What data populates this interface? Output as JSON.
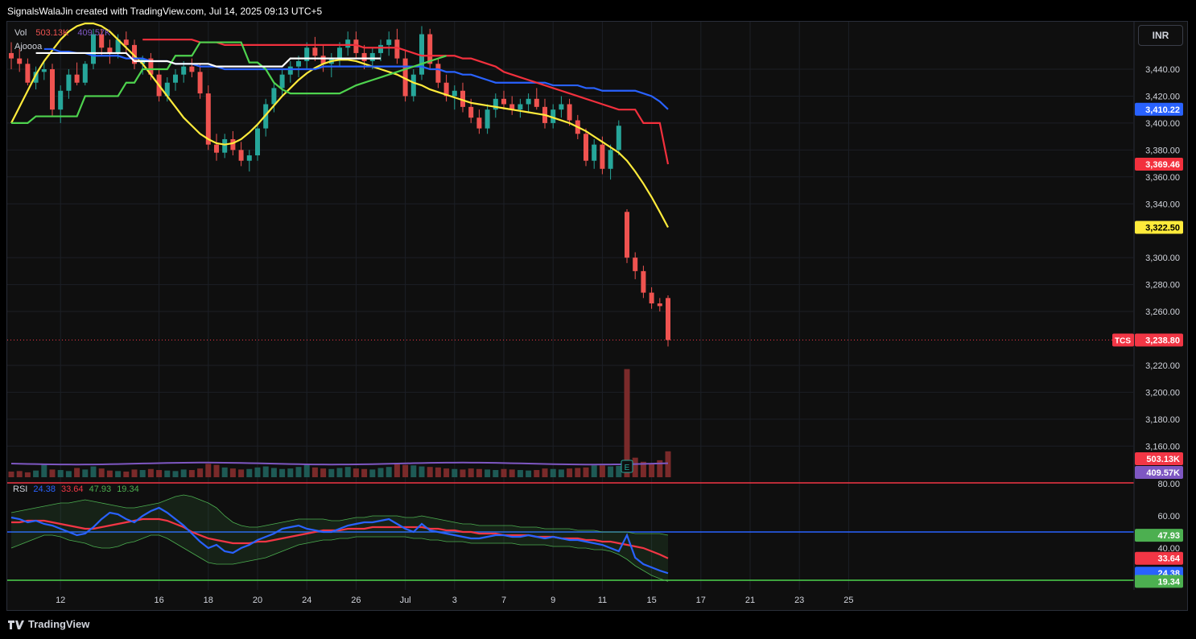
{
  "header": {
    "text": "SignalsWalaJin created with TradingView.com, Jul 14, 2025 09:13 UTC+5"
  },
  "currency_button": "INR",
  "footer": {
    "brand": "TradingView"
  },
  "legend": {
    "vol_label": "Vol",
    "vol_value1": "503.13K",
    "vol_value2": "409.57K",
    "indicator_label": "Ajoooa"
  },
  "colors": {
    "up": "#26a69a",
    "down": "#ef5350",
    "yellow": "#ffeb3b",
    "blue": "#2962ff",
    "red": "#f2303d",
    "green": "#4ed34e",
    "white": "#ffffff",
    "purple": "#7e57c2"
  },
  "price_axis": {
    "ticks": [
      3440,
      3420,
      3400,
      3380,
      3360,
      3340,
      3300,
      3280,
      3260,
      3220,
      3200,
      3180,
      3160
    ],
    "tick_labels": [
      "3,440.00",
      "3,420.00",
      "3,400.00",
      "3,380.00",
      "3,360.00",
      "3,340.00",
      "3,300.00",
      "3,280.00",
      "3,260.00",
      "3,220.00",
      "3,200.00",
      "3,180.00",
      "3,160.00"
    ]
  },
  "price_tags": [
    {
      "value": 3410.22,
      "label": "3,410.22",
      "color": "#2962ff",
      "text_color": "#ffffff"
    },
    {
      "value": 3369.46,
      "label": "3,369.46",
      "color": "#f2303d",
      "text_color": "#ffffff"
    },
    {
      "value": 3322.5,
      "label": "3,322.50",
      "color": "#ffeb3b",
      "text_color": "#000000"
    },
    {
      "value": 3238.8,
      "label": "3,238.80",
      "color": "#f23645",
      "text_color": "#ffffff",
      "symbol": "TCS"
    }
  ],
  "volume_tags": [
    {
      "label": "503.13K",
      "color": "#f23645"
    },
    {
      "label": "409.57K",
      "color": "#7e57c2"
    }
  ],
  "rsi": {
    "label": "RSI",
    "values": [
      "24.38",
      "33.64",
      "47.93",
      "19.34"
    ],
    "value_colors": [
      "#2962ff",
      "#f23645",
      "#4caf50",
      "#4caf50"
    ],
    "axis_labels": [
      "80.00",
      "60.00",
      "40.00"
    ],
    "axis_values": [
      80,
      60,
      40
    ],
    "tags": [
      {
        "value": 47.93,
        "label": "47.93",
        "color": "#4caf50"
      },
      {
        "value": 33.64,
        "label": "33.64",
        "color": "#f23645"
      },
      {
        "value": 24.38,
        "label": "24.38",
        "color": "#2962ff"
      },
      {
        "value": 19.34,
        "label": "19.34",
        "color": "#4caf50"
      }
    ],
    "levels": [
      80,
      50,
      19.34
    ]
  },
  "time_axis": {
    "labels": [
      "12",
      "16",
      "18",
      "20",
      "24",
      "26",
      "Jul",
      "3",
      "7",
      "9",
      "11",
      "15",
      "17",
      "21",
      "23",
      "25"
    ],
    "bar_index": [
      6,
      18,
      24,
      30,
      36,
      42,
      48,
      54,
      60,
      66,
      72,
      78,
      84,
      90,
      96,
      102
    ]
  },
  "earnings_marker": "E",
  "chart_data": {
    "type": "candlestick",
    "symbol": "TCS",
    "currency": "INR",
    "x_labels": [
      "12",
      "16",
      "18",
      "20",
      "24",
      "26",
      "Jul",
      "3",
      "7",
      "9",
      "11",
      "15",
      "17",
      "21",
      "23",
      "25"
    ],
    "ylim": [
      3150,
      3475
    ],
    "last_price": 3238.8,
    "ohlc": [
      [
        3452,
        3460,
        3440,
        3448
      ],
      [
        3448,
        3455,
        3438,
        3444
      ],
      [
        3444,
        3448,
        3428,
        3430
      ],
      [
        3430,
        3442,
        3425,
        3438
      ],
      [
        3438,
        3446,
        3432,
        3440
      ],
      [
        3440,
        3444,
        3405,
        3410
      ],
      [
        3410,
        3428,
        3400,
        3424
      ],
      [
        3424,
        3440,
        3418,
        3436
      ],
      [
        3436,
        3445,
        3428,
        3430
      ],
      [
        3430,
        3446,
        3428,
        3444
      ],
      [
        3444,
        3470,
        3440,
        3466
      ],
      [
        3466,
        3470,
        3450,
        3456
      ],
      [
        3456,
        3462,
        3444,
        3452
      ],
      [
        3452,
        3466,
        3448,
        3462
      ],
      [
        3462,
        3468,
        3452,
        3458
      ],
      [
        3458,
        3462,
        3440,
        3444
      ],
      [
        3444,
        3450,
        3436,
        3448
      ],
      [
        3448,
        3452,
        3432,
        3436
      ],
      [
        3436,
        3440,
        3416,
        3420
      ],
      [
        3420,
        3434,
        3416,
        3430
      ],
      [
        3430,
        3440,
        3424,
        3436
      ],
      [
        3436,
        3446,
        3430,
        3442
      ],
      [
        3442,
        3448,
        3434,
        3438
      ],
      [
        3438,
        3444,
        3418,
        3422
      ],
      [
        3422,
        3428,
        3380,
        3384
      ],
      [
        3384,
        3392,
        3372,
        3378
      ],
      [
        3378,
        3392,
        3374,
        3388
      ],
      [
        3388,
        3394,
        3376,
        3380
      ],
      [
        3380,
        3386,
        3368,
        3372
      ],
      [
        3372,
        3380,
        3364,
        3376
      ],
      [
        3376,
        3400,
        3372,
        3396
      ],
      [
        3396,
        3418,
        3390,
        3414
      ],
      [
        3414,
        3430,
        3408,
        3426
      ],
      [
        3426,
        3440,
        3420,
        3436
      ],
      [
        3436,
        3446,
        3430,
        3442
      ],
      [
        3442,
        3450,
        3434,
        3446
      ],
      [
        3446,
        3460,
        3440,
        3456
      ],
      [
        3456,
        3464,
        3446,
        3450
      ],
      [
        3450,
        3458,
        3438,
        3444
      ],
      [
        3444,
        3452,
        3434,
        3448
      ],
      [
        3448,
        3460,
        3442,
        3456
      ],
      [
        3456,
        3468,
        3450,
        3462
      ],
      [
        3462,
        3468,
        3448,
        3452
      ],
      [
        3452,
        3458,
        3440,
        3446
      ],
      [
        3446,
        3456,
        3440,
        3452
      ],
      [
        3452,
        3462,
        3446,
        3458
      ],
      [
        3458,
        3468,
        3450,
        3462
      ],
      [
        3462,
        3470,
        3444,
        3448
      ],
      [
        3448,
        3454,
        3416,
        3420
      ],
      [
        3420,
        3440,
        3416,
        3436
      ],
      [
        3436,
        3472,
        3432,
        3466
      ],
      [
        3466,
        3470,
        3440,
        3444
      ],
      [
        3444,
        3448,
        3426,
        3430
      ],
      [
        3430,
        3436,
        3416,
        3420
      ],
      [
        3420,
        3428,
        3410,
        3424
      ],
      [
        3424,
        3430,
        3408,
        3412
      ],
      [
        3412,
        3418,
        3400,
        3404
      ],
      [
        3404,
        3410,
        3392,
        3396
      ],
      [
        3396,
        3414,
        3392,
        3410
      ],
      [
        3410,
        3422,
        3404,
        3418
      ],
      [
        3418,
        3424,
        3410,
        3414
      ],
      [
        3414,
        3420,
        3406,
        3410
      ],
      [
        3410,
        3418,
        3404,
        3414
      ],
      [
        3414,
        3422,
        3408,
        3418
      ],
      [
        3418,
        3426,
        3410,
        3412
      ],
      [
        3412,
        3418,
        3396,
        3400
      ],
      [
        3400,
        3414,
        3396,
        3410
      ],
      [
        3410,
        3420,
        3404,
        3414
      ],
      [
        3414,
        3418,
        3398,
        3402
      ],
      [
        3402,
        3406,
        3388,
        3392
      ],
      [
        3392,
        3396,
        3368,
        3372
      ],
      [
        3372,
        3388,
        3366,
        3384
      ],
      [
        3384,
        3390,
        3362,
        3366
      ],
      [
        3366,
        3384,
        3358,
        3380
      ],
      [
        3380,
        3402,
        3376,
        3398
      ],
      [
        3334,
        3336,
        3296,
        3300
      ],
      [
        3300,
        3304,
        3284,
        3290
      ],
      [
        3290,
        3294,
        3270,
        3274
      ],
      [
        3274,
        3278,
        3262,
        3266
      ],
      [
        3266,
        3270,
        3260,
        3264
      ],
      [
        3270,
        3272,
        3234,
        3238.8
      ]
    ],
    "volume_k": [
      110,
      120,
      95,
      130,
      260,
      150,
      140,
      120,
      180,
      150,
      210,
      170,
      130,
      120,
      110,
      150,
      140,
      160,
      140,
      130,
      120,
      150,
      140,
      170,
      260,
      240,
      190,
      170,
      150,
      160,
      190,
      210,
      180,
      160,
      170,
      200,
      250,
      190,
      170,
      160,
      180,
      200,
      170,
      160,
      150,
      180,
      200,
      260,
      240,
      230,
      210,
      200,
      190,
      170,
      160,
      150,
      170,
      160,
      150,
      140,
      160,
      150,
      140,
      130,
      140,
      170,
      160,
      150,
      170,
      180,
      190,
      230,
      230,
      210,
      220,
      2100,
      380,
      300,
      260,
      330,
      503.13
    ],
    "series": [
      {
        "name": "",
        "color": "#ffeb3b",
        "values": [
          3400,
          3412,
          3424,
          3436,
          3446,
          3454,
          3462,
          3468,
          3472,
          3474,
          3474,
          3472,
          3468,
          3462,
          3456,
          3450,
          3444,
          3436,
          3428,
          3420,
          3412,
          3404,
          3398,
          3392,
          3388,
          3385,
          3384,
          3385,
          3388,
          3393,
          3399,
          3406,
          3413,
          3420,
          3426,
          3432,
          3437,
          3441,
          3444,
          3446,
          3447,
          3447,
          3446,
          3444,
          3442,
          3440,
          3438,
          3436,
          3433,
          3430,
          3428,
          3425,
          3423,
          3421,
          3419,
          3417,
          3415,
          3414,
          3413,
          3412,
          3411,
          3410,
          3409,
          3408,
          3407,
          3406,
          3404,
          3402,
          3400,
          3397,
          3394,
          3390,
          3386,
          3382,
          3378,
          3372,
          3364,
          3355,
          3345,
          3334,
          3322.5
        ]
      },
      {
        "name": "",
        "color": "#2962ff",
        "values": [
          null,
          null,
          null,
          null,
          3455,
          3455,
          3453,
          3453,
          3452,
          3452,
          3450,
          3450,
          3450,
          3450,
          3448,
          3448,
          3448,
          3446,
          3446,
          3446,
          3444,
          3444,
          3444,
          3442,
          3442,
          3442,
          3440,
          3440,
          3440,
          3440,
          3440,
          3440,
          3440,
          3440,
          3440,
          3440,
          3440,
          3440,
          3442,
          3442,
          3442,
          3442,
          3442,
          3442,
          3442,
          3442,
          3442,
          3442,
          3442,
          3442,
          3442,
          3440,
          3440,
          3438,
          3438,
          3436,
          3436,
          3434,
          3432,
          3430,
          3430,
          3430,
          3430,
          3430,
          3430,
          3430,
          3428,
          3428,
          3428,
          3428,
          3426,
          3426,
          3424,
          3424,
          3424,
          3424,
          3424,
          3422,
          3420,
          3416,
          3410.22
        ]
      },
      {
        "name": "",
        "color": "#f2303d",
        "values": [
          null,
          null,
          null,
          null,
          null,
          null,
          null,
          null,
          null,
          null,
          null,
          null,
          null,
          null,
          null,
          null,
          3462,
          3462,
          3462,
          3462,
          3462,
          3462,
          3462,
          3460,
          3460,
          3460,
          3458,
          3458,
          3458,
          3458,
          3458,
          3458,
          3458,
          3458,
          3458,
          3458,
          3458,
          3458,
          3458,
          3458,
          3458,
          3458,
          3458,
          3456,
          3456,
          3456,
          3456,
          3456,
          3454,
          3452,
          3450,
          3450,
          3450,
          3450,
          3450,
          3448,
          3448,
          3446,
          3444,
          3442,
          3438,
          3436,
          3434,
          3432,
          3430,
          3428,
          3426,
          3424,
          3422,
          3420,
          3418,
          3416,
          3414,
          3412,
          3410,
          3410,
          3410,
          3400,
          3400,
          3400,
          3369.46
        ]
      },
      {
        "name": "",
        "color": "#4ed34e",
        "values": [
          3400,
          3400,
          3400,
          3405,
          3405,
          3405,
          3405,
          3405,
          3405,
          3420,
          3420,
          3420,
          3420,
          3420,
          3430,
          3430,
          3440,
          3440,
          3440,
          3440,
          3450,
          3450,
          3450,
          3460,
          3460,
          3460,
          3460,
          3460,
          3460,
          3445,
          3445,
          3440,
          3430,
          3425,
          3422,
          3422,
          3422,
          3422,
          3422,
          3422,
          3422,
          3425,
          3428,
          3430,
          3432,
          3434,
          3436,
          3438,
          3440,
          3442,
          3444,
          3446,
          3448,
          3450
        ]
      },
      {
        "name": "",
        "color": "#ffffff",
        "values": [
          null,
          null,
          null,
          3452,
          3452,
          3452,
          3452,
          3452,
          3452,
          3452,
          3452,
          3452,
          3452,
          3452,
          3452,
          3446,
          3446,
          3446,
          3446,
          3446,
          3444,
          3444,
          3444,
          3444,
          3444,
          3442,
          3442,
          3442,
          3442,
          3442,
          3442,
          3442,
          3442,
          3442,
          3448,
          3448,
          3448,
          3448,
          3448,
          3448,
          3448,
          3448,
          3448,
          3448,
          3448,
          3448
        ]
      }
    ],
    "rsi_values": [
      59,
      58,
      56,
      57,
      55,
      54,
      52,
      50,
      48,
      49,
      53,
      58,
      62,
      61,
      58,
      56,
      60,
      63,
      65,
      62,
      58,
      54,
      49,
      44,
      40,
      42,
      38,
      37,
      40,
      42,
      45,
      47,
      49,
      52,
      53,
      54,
      52,
      51,
      50,
      50,
      52,
      54,
      55,
      56,
      56,
      57,
      58,
      55,
      52,
      50,
      55,
      51,
      50,
      49,
      48,
      47,
      46,
      46,
      47,
      48,
      48,
      47,
      47,
      48,
      47,
      46,
      47,
      46,
      45,
      45,
      44,
      43,
      42,
      40,
      38,
      48,
      34,
      30,
      28,
      26,
      24.38
    ],
    "rsi_ma_values": [
      56,
      56,
      57,
      57,
      57,
      56,
      55,
      54,
      53,
      52,
      52,
      53,
      54,
      55,
      56,
      57,
      58,
      58,
      58,
      57,
      55,
      53,
      50,
      48,
      46,
      45,
      44,
      43,
      43,
      43,
      44,
      44,
      45,
      46,
      47,
      48,
      49,
      50,
      51,
      51,
      51,
      52,
      52,
      52,
      53,
      53,
      53,
      53,
      53,
      53,
      53,
      52,
      52,
      51,
      51,
      50,
      50,
      49,
      49,
      49,
      48,
      48,
      48,
      48,
      47,
      47,
      47,
      46,
      46,
      46,
      45,
      45,
      44,
      44,
      43,
      42,
      41,
      40,
      38,
      36,
      33.64
    ],
    "rsi_band_upper": [
      62,
      63,
      64,
      65,
      66,
      67,
      68,
      68,
      69,
      70,
      69,
      68,
      67,
      66,
      65,
      65,
      66,
      67,
      68,
      70,
      72,
      73,
      72,
      70,
      68,
      65,
      60,
      56,
      54,
      53,
      53,
      54,
      55,
      56,
      57,
      58,
      58,
      58,
      58,
      57,
      57,
      58,
      59,
      59,
      60,
      60,
      60,
      60,
      59,
      59,
      60,
      59,
      58,
      57,
      56,
      55,
      55,
      54,
      54,
      54,
      54,
      54,
      53,
      53,
      53,
      52,
      52,
      52,
      52,
      51,
      51,
      51,
      50,
      50,
      50,
      50,
      49,
      49,
      49,
      49,
      48
    ],
    "rsi_band_lower": [
      40,
      42,
      44,
      46,
      48,
      48,
      47,
      45,
      44,
      43,
      41,
      40,
      40,
      41,
      43,
      44,
      46,
      48,
      48,
      46,
      43,
      40,
      37,
      34,
      31,
      30,
      30,
      30,
      31,
      32,
      33,
      34,
      36,
      38,
      40,
      42,
      43,
      44,
      45,
      45,
      46,
      46,
      47,
      47,
      47,
      47,
      47,
      47,
      47,
      46,
      46,
      45,
      45,
      44,
      44,
      44,
      43,
      43,
      43,
      43,
      43,
      43,
      42,
      42,
      42,
      42,
      41,
      41,
      41,
      40,
      40,
      39,
      39,
      38,
      36,
      33,
      29,
      26,
      23,
      21,
      19.34
    ]
  }
}
